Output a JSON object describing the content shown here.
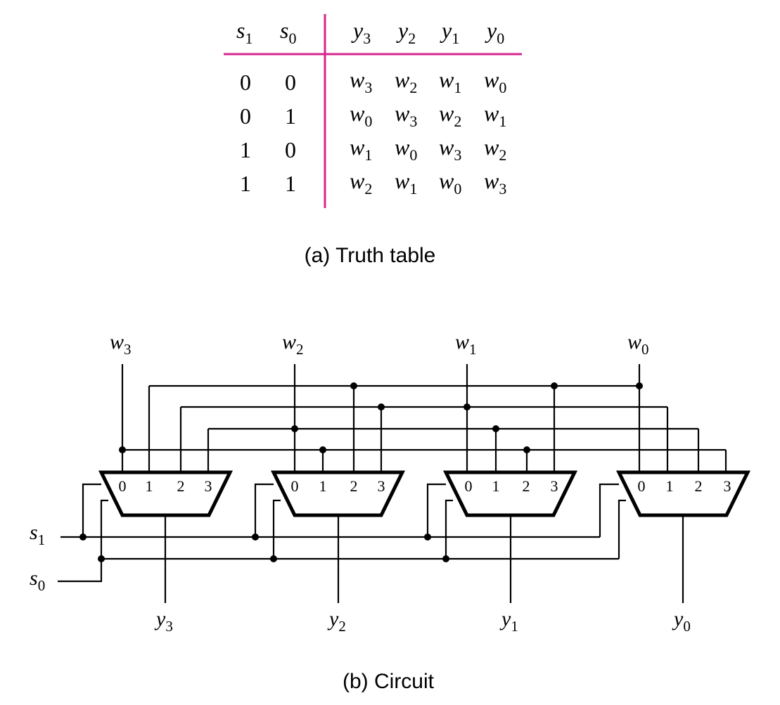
{
  "truth_table": {
    "headers": [
      {
        "base": "s",
        "sub": "1"
      },
      {
        "base": "s",
        "sub": "0"
      },
      {
        "base": "y",
        "sub": "3"
      },
      {
        "base": "y",
        "sub": "2"
      },
      {
        "base": "y",
        "sub": "1"
      },
      {
        "base": "y",
        "sub": "0"
      }
    ],
    "rows": [
      {
        "s1": "0",
        "s0": "0",
        "outputs": [
          {
            "base": "w",
            "sub": "3"
          },
          {
            "base": "w",
            "sub": "2"
          },
          {
            "base": "w",
            "sub": "1"
          },
          {
            "base": "w",
            "sub": "0"
          }
        ]
      },
      {
        "s1": "0",
        "s0": "1",
        "outputs": [
          {
            "base": "w",
            "sub": "0"
          },
          {
            "base": "w",
            "sub": "3"
          },
          {
            "base": "w",
            "sub": "2"
          },
          {
            "base": "w",
            "sub": "1"
          }
        ]
      },
      {
        "s1": "1",
        "s0": "0",
        "outputs": [
          {
            "base": "w",
            "sub": "1"
          },
          {
            "base": "w",
            "sub": "0"
          },
          {
            "base": "w",
            "sub": "3"
          },
          {
            "base": "w",
            "sub": "2"
          }
        ]
      },
      {
        "s1": "1",
        "s0": "1",
        "outputs": [
          {
            "base": "w",
            "sub": "2"
          },
          {
            "base": "w",
            "sub": "1"
          },
          {
            "base": "w",
            "sub": "0"
          },
          {
            "base": "w",
            "sub": "3"
          }
        ]
      }
    ],
    "rule_color": "#d4268f"
  },
  "captions": {
    "a": "(a) Truth table",
    "b": "(b) Circuit"
  },
  "circuit": {
    "inputs": [
      {
        "base": "w",
        "sub": "3"
      },
      {
        "base": "w",
        "sub": "2"
      },
      {
        "base": "w",
        "sub": "1"
      },
      {
        "base": "w",
        "sub": "0"
      }
    ],
    "selects": [
      {
        "base": "s",
        "sub": "1"
      },
      {
        "base": "s",
        "sub": "0"
      }
    ],
    "outputs": [
      {
        "base": "y",
        "sub": "3"
      },
      {
        "base": "y",
        "sub": "2"
      },
      {
        "base": "y",
        "sub": "1"
      },
      {
        "base": "y",
        "sub": "0"
      }
    ],
    "mux_port_labels": [
      "0",
      "1",
      "2",
      "3"
    ],
    "connections": [
      {
        "mux": "y3",
        "ports": [
          "w3",
          "w0",
          "w1",
          "w2"
        ]
      },
      {
        "mux": "y2",
        "ports": [
          "w2",
          "w3",
          "w0",
          "w1"
        ]
      },
      {
        "mux": "y1",
        "ports": [
          "w1",
          "w2",
          "w3",
          "w0"
        ]
      },
      {
        "mux": "y0",
        "ports": [
          "w0",
          "w1",
          "w2",
          "w3"
        ]
      }
    ]
  }
}
